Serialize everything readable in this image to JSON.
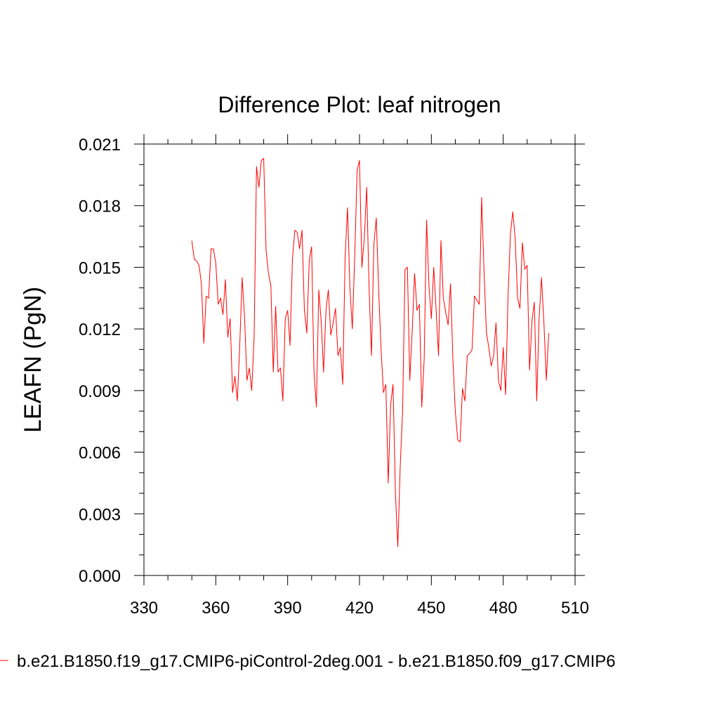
{
  "chart_data": {
    "type": "line",
    "title": "Difference Plot: leaf nitrogen",
    "xlabel": "",
    "ylabel": "LEAFN  (PgN)",
    "xlim": [
      330,
      510
    ],
    "ylim": [
      0.0,
      0.021
    ],
    "x_ticks": [
      330,
      360,
      390,
      420,
      450,
      480,
      510
    ],
    "x_tick_labels": [
      "330",
      "360",
      "390",
      "420",
      "450",
      "480",
      "510"
    ],
    "y_ticks": [
      0.0,
      0.003,
      0.006,
      0.009,
      0.012,
      0.015,
      0.018,
      0.021
    ],
    "y_tick_labels": [
      "0.000",
      "0.003",
      "0.006",
      "0.009",
      "0.012",
      "0.015",
      "0.018",
      "0.021"
    ],
    "grid": false,
    "legend_position": "bottom",
    "series": [
      {
        "name": "b.e21.B1850.f19_g17.CMIP6-piControl-2deg.001 - b.e21.B1850.f09_g17.CMIP6",
        "color": "#ff0000",
        "x": [
          350,
          351,
          352,
          353,
          354,
          355,
          356,
          357,
          358,
          359,
          360,
          361,
          362,
          363,
          364,
          365,
          366,
          367,
          368,
          369,
          370,
          371,
          372,
          373,
          374,
          375,
          376,
          377,
          378,
          379,
          380,
          381,
          382,
          383,
          384,
          385,
          386,
          387,
          388,
          389,
          390,
          391,
          392,
          393,
          394,
          395,
          396,
          397,
          398,
          399,
          400,
          401,
          402,
          403,
          404,
          405,
          406,
          407,
          408,
          409,
          410,
          411,
          412,
          413,
          414,
          415,
          416,
          417,
          418,
          419,
          420,
          421,
          422,
          423,
          424,
          425,
          426,
          427,
          428,
          429,
          430,
          431,
          432,
          433,
          434,
          435,
          436,
          437,
          438,
          439,
          440,
          441,
          442,
          443,
          444,
          445,
          446,
          447,
          448,
          449,
          450,
          451,
          452,
          453,
          454,
          455,
          456,
          457,
          458,
          459,
          460,
          461,
          462,
          463,
          464,
          465,
          466,
          467,
          468,
          469,
          470,
          471,
          472,
          473,
          474,
          475,
          476,
          477,
          478,
          479,
          480,
          481,
          482,
          483,
          484,
          485,
          486,
          487,
          488,
          489,
          490,
          491,
          492,
          493,
          494,
          495,
          496,
          497,
          498,
          499
        ],
        "values": [
          0.0163,
          0.0154,
          0.0153,
          0.0151,
          0.0142,
          0.0113,
          0.0136,
          0.0135,
          0.0159,
          0.0159,
          0.0152,
          0.0132,
          0.0135,
          0.0127,
          0.0144,
          0.0116,
          0.0125,
          0.0089,
          0.0097,
          0.0085,
          0.0112,
          0.0145,
          0.0126,
          0.0095,
          0.0101,
          0.009,
          0.0116,
          0.0199,
          0.0189,
          0.0202,
          0.0203,
          0.0158,
          0.0147,
          0.0141,
          0.0099,
          0.0131,
          0.0099,
          0.0101,
          0.0085,
          0.0125,
          0.0129,
          0.0112,
          0.0154,
          0.0168,
          0.0167,
          0.0159,
          0.0168,
          0.0129,
          0.0118,
          0.0153,
          0.016,
          0.0099,
          0.0082,
          0.0139,
          0.0124,
          0.0099,
          0.0129,
          0.0139,
          0.0117,
          0.0123,
          0.013,
          0.0107,
          0.0111,
          0.0093,
          0.0155,
          0.0179,
          0.014,
          0.012,
          0.0155,
          0.0197,
          0.0202,
          0.015,
          0.0164,
          0.0189,
          0.014,
          0.0107,
          0.0161,
          0.0174,
          0.0139,
          0.011,
          0.0089,
          0.0093,
          0.0045,
          0.0083,
          0.0093,
          0.004,
          0.0014,
          0.0053,
          0.008,
          0.0149,
          0.015,
          0.0095,
          0.0119,
          0.0147,
          0.0129,
          0.0132,
          0.0082,
          0.0105,
          0.0173,
          0.0141,
          0.0125,
          0.015,
          0.0129,
          0.0107,
          0.0163,
          0.0135,
          0.0128,
          0.0122,
          0.0142,
          0.0105,
          0.008,
          0.0066,
          0.0065,
          0.0091,
          0.0085,
          0.0107,
          0.0108,
          0.011,
          0.0136,
          0.0134,
          0.0132,
          0.0184,
          0.0148,
          0.0118,
          0.0111,
          0.0102,
          0.0107,
          0.0123,
          0.0095,
          0.009,
          0.0111,
          0.0088,
          0.0135,
          0.0166,
          0.0177,
          0.0164,
          0.0135,
          0.013,
          0.0162,
          0.0149,
          0.0151,
          0.01,
          0.0124,
          0.0133,
          0.0085,
          0.0125,
          0.0145,
          0.0123,
          0.0095,
          0.0118
        ]
      }
    ]
  }
}
